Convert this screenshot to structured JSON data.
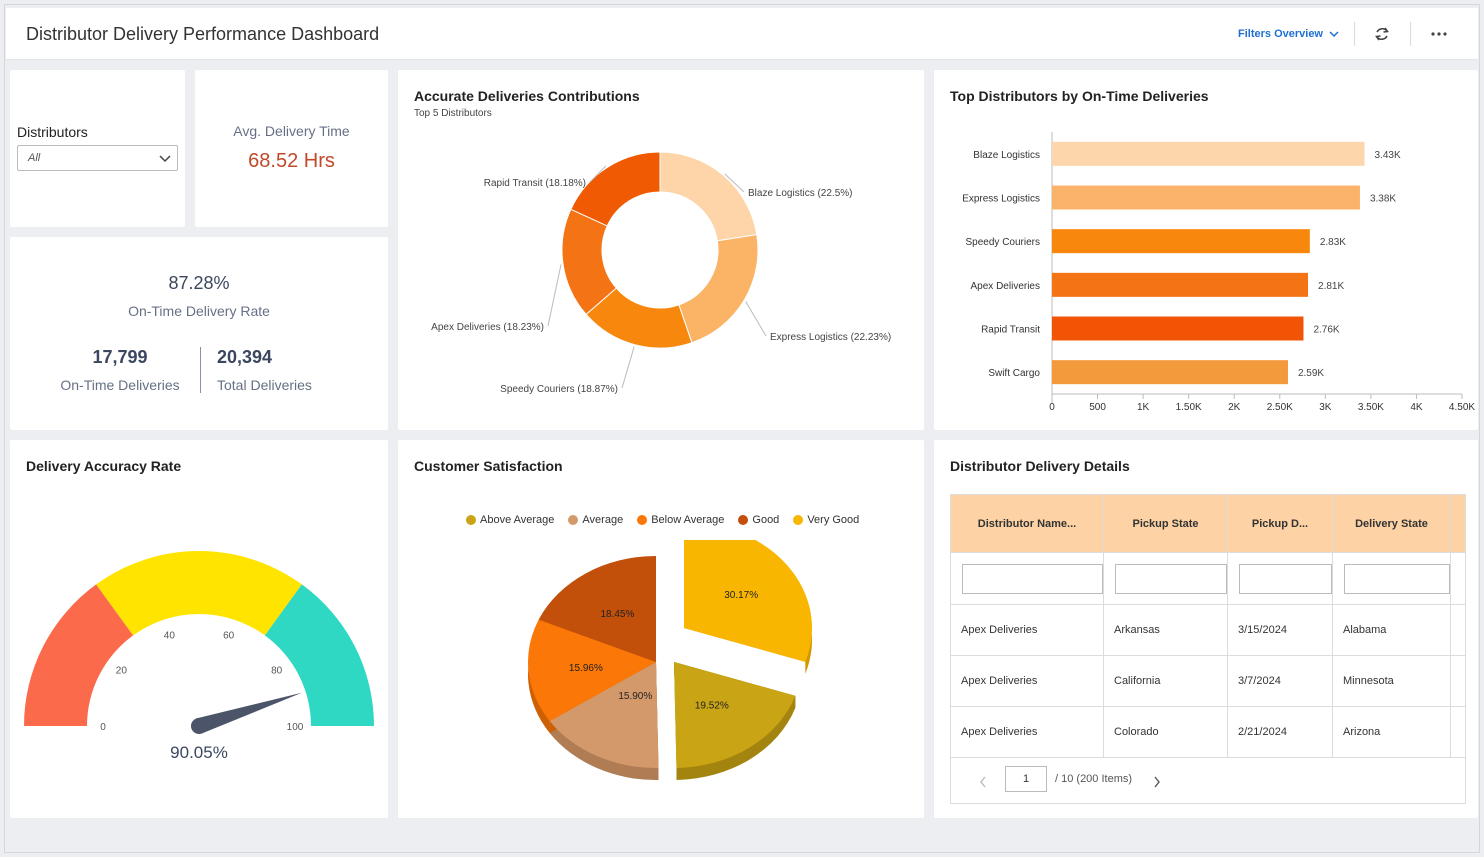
{
  "header": {
    "title": "Distributor Delivery Performance Dashboard",
    "filters_label": "Filters Overview",
    "icons": [
      "chevron-down-icon",
      "refresh-icon",
      "more-icon"
    ]
  },
  "distributors": {
    "label": "Distributors",
    "selected": "All"
  },
  "avg_delivery": {
    "label": "Avg. Delivery Time",
    "value": "68.52 Hrs",
    "value_color": "#c0492a"
  },
  "ontime": {
    "rate_value": "87.28%",
    "rate_label": "On-Time Delivery Rate",
    "deliveries_value": "17,799",
    "deliveries_label": "On-Time Deliveries",
    "total_value": "20,394",
    "total_label": "Total Deliveries"
  },
  "donut": {
    "title": "Accurate Deliveries Contributions",
    "subtitle": "Top 5 Distributors",
    "chart_data": {
      "type": "pie",
      "variant": "donut",
      "categories": [
        "Blaze Logistics",
        "Express Logistics",
        "Speedy Couriers",
        "Apex Deliveries",
        "Rapid Transit"
      ],
      "values": [
        22.5,
        22.23,
        18.87,
        18.23,
        18.18
      ],
      "labels": [
        "Blaze Logistics (22.5%)",
        "Express Logistics (22.23%)",
        "Speedy Couriers (18.87%)",
        "Apex Deliveries (18.23%)",
        "Rapid Transit (18.18%)"
      ],
      "colors": [
        "#fdd5a8",
        "#fbb366",
        "#f8880d",
        "#f47314",
        "#f05a03"
      ]
    }
  },
  "bar": {
    "title": "Top Distributors by On-Time Deliveries",
    "chart_data": {
      "type": "bar",
      "orientation": "horizontal",
      "categories": [
        "Blaze Logistics",
        "Express Logistics",
        "Speedy Couriers",
        "Apex Deliveries",
        "Rapid Transit",
        "Swift Cargo"
      ],
      "values": [
        3430,
        3380,
        2830,
        2810,
        2760,
        2590
      ],
      "value_labels": [
        "3.43K",
        "3.38K",
        "2.83K",
        "2.81K",
        "2.76K",
        "2.59K"
      ],
      "colors": [
        "#fdd7ab",
        "#fbb36b",
        "#f8880d",
        "#f47314",
        "#f25405",
        "#f39a3d"
      ],
      "xlim": [
        0,
        4500
      ],
      "ticks": [
        0,
        500,
        1000,
        1500,
        2000,
        2500,
        3000,
        3500,
        4000,
        4500
      ],
      "tick_labels": [
        "0",
        "500",
        "1K",
        "1.50K",
        "2K",
        "2.50K",
        "3K",
        "3.50K",
        "4K",
        "4.50K"
      ]
    }
  },
  "gauge": {
    "title": "Delivery Accuracy Rate",
    "chart_data": {
      "type": "gauge",
      "value": 90.05,
      "value_label": "90.05%",
      "range": [
        0,
        100
      ],
      "bands": [
        {
          "from": 0,
          "to": 30,
          "color": "#fb6a4a"
        },
        {
          "from": 30,
          "to": 70,
          "color": "#ffe400"
        },
        {
          "from": 70,
          "to": 100,
          "color": "#2ed8c3"
        }
      ],
      "ticks": [
        0,
        20,
        40,
        60,
        80,
        100
      ],
      "tick_labels": [
        "0",
        "20",
        "40",
        "60",
        "80",
        "100"
      ]
    }
  },
  "satisfaction": {
    "title": "Customer Satisfaction",
    "legend": [
      {
        "label": "Above Average",
        "color": "#c9a415"
      },
      {
        "label": "Average",
        "color": "#d3996b"
      },
      {
        "label": "Below Average",
        "color": "#fb7708"
      },
      {
        "label": "Good",
        "color": "#c24f0a"
      },
      {
        "label": "Very Good",
        "color": "#f9b600"
      }
    ],
    "chart_data": {
      "type": "pie",
      "variant": "3d-exploded",
      "categories": [
        "Very Good",
        "Above Average",
        "Average",
        "Below Average",
        "Good"
      ],
      "values": [
        30.17,
        19.52,
        15.9,
        15.96,
        18.45
      ],
      "labels": [
        "30.17%",
        "19.52%",
        "15.90%",
        "15.96%",
        "18.45%"
      ],
      "colors": [
        "#f9b600",
        "#c9a415",
        "#d3996b",
        "#fb7708",
        "#c24f0a"
      ],
      "side_colors": [
        "#d29800",
        "#a3840f",
        "#b07c53",
        "#cf5f03",
        "#9b3f07"
      ]
    }
  },
  "details": {
    "title": "Distributor Delivery Details",
    "columns": [
      "Distributor Name...",
      "Pickup State",
      "Pickup D...",
      "Delivery State"
    ],
    "rows": [
      [
        "Apex Deliveries",
        "Arkansas",
        "3/15/2024",
        "Alabama"
      ],
      [
        "Apex Deliveries",
        "California",
        "3/7/2024",
        "Minnesota"
      ],
      [
        "Apex Deliveries",
        "Colorado",
        "2/21/2024",
        "Arizona"
      ]
    ],
    "pager": {
      "page": "1",
      "info": "/  10 (200 Items)"
    },
    "header_color": "#fdd3a5"
  }
}
